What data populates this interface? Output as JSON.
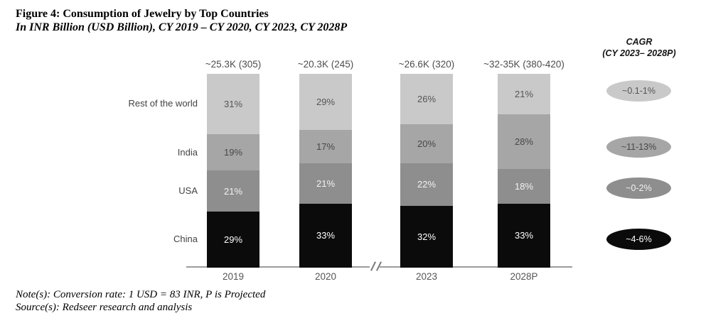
{
  "title": "Figure 4: Consumption of Jewelry by Top Countries",
  "subtitle": "In INR Billion (USD Billion), CY 2019 – CY 2020, CY 2023, CY 2028P",
  "notes": {
    "note": "Note(s): Conversion rate: 1 USD = 83 INR, P is Projected",
    "source": "Source(s): Redseer research and analysis"
  },
  "legend": {
    "title_line1": "CAGR",
    "title_line2": "(CY 2023– 2028P)",
    "items": [
      {
        "label": "~0.1-1%",
        "color": "#c9c9c9",
        "text_color": "#555555"
      },
      {
        "label": "~11-13%",
        "color": "#a6a6a6",
        "text_color": "#474747"
      },
      {
        "label": "~0-2%",
        "color": "#8e8e8e",
        "text_color": "#f2f2f2"
      },
      {
        "label": "~4-6%",
        "color": "#0b0b0b",
        "text_color": "#ffffff"
      }
    ]
  },
  "chart_data": {
    "type": "bar",
    "stacked": true,
    "unit": "percent share of consumption",
    "categories": [
      "2019",
      "2020",
      "2023",
      "2028P"
    ],
    "totals": [
      "~25.3K (305)",
      "~20.3K (245)",
      "~26.6K (320)",
      "~32-35K (380-420)"
    ],
    "axis_break_between": [
      "2020",
      "2023"
    ],
    "ylim": [
      0,
      100
    ],
    "grid": false,
    "legend_position": "right",
    "series": [
      {
        "name": "Rest of the world",
        "values": [
          31,
          29,
          26,
          21
        ],
        "color": "#c9c9c9",
        "label_color": "#555555",
        "cagr": "~0.1-1%"
      },
      {
        "name": "India",
        "values": [
          19,
          17,
          20,
          28
        ],
        "color": "#a6a6a6",
        "label_color": "#474747",
        "cagr": "~11-13%"
      },
      {
        "name": "USA",
        "values": [
          21,
          21,
          22,
          18
        ],
        "color": "#8e8e8e",
        "label_color": "#f2f2f2",
        "cagr": "~0-2%"
      },
      {
        "name": "China",
        "values": [
          29,
          33,
          32,
          33
        ],
        "color": "#0b0b0b",
        "label_color": "#ffffff",
        "cagr": "~4-6%"
      }
    ]
  }
}
